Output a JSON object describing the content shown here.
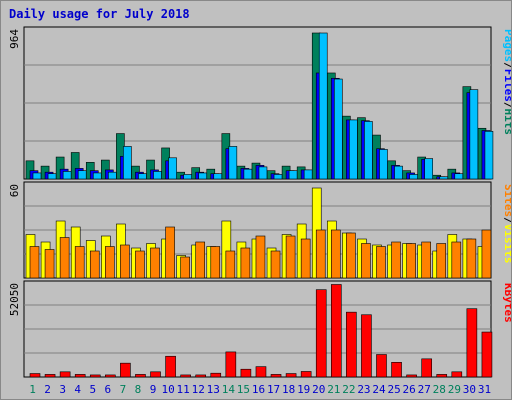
{
  "title": "Daily usage for July 2018",
  "colors": {
    "hits": "#00805c",
    "files": "#0000ff",
    "pages": "#00c0ff",
    "visits": "#ffff00",
    "sites": "#ff8000",
    "kbytes": "#ff0000",
    "panel_bg": "#c0c0c0",
    "grid": "#808080",
    "weekend_label": "#00805c",
    "weekday_label": "#0000cc"
  },
  "chart_data": [
    {
      "type": "bar",
      "panel": "top",
      "ylabel_parts": [
        "Pages",
        "Files",
        "Hits"
      ],
      "ymax_label": "964",
      "ylim": [
        0,
        964
      ],
      "categories": [
        "1",
        "2",
        "3",
        "4",
        "5",
        "6",
        "7",
        "8",
        "9",
        "10",
        "11",
        "12",
        "13",
        "14",
        "15",
        "16",
        "17",
        "18",
        "19",
        "20",
        "21",
        "22",
        "23",
        "24",
        "25",
        "26",
        "27",
        "28",
        "29",
        "30",
        "31"
      ],
      "series": [
        {
          "name": "Hits",
          "values": [
            120,
            85,
            145,
            175,
            110,
            125,
            300,
            85,
            125,
            205,
            45,
            75,
            65,
            300,
            85,
            105,
            55,
            85,
            80,
            964,
            700,
            415,
            405,
            290,
            120,
            55,
            145,
            25,
            65,
            610,
            335
          ]
        },
        {
          "name": "Files",
          "values": [
            55,
            45,
            65,
            70,
            55,
            60,
            150,
            45,
            60,
            120,
            25,
            45,
            35,
            200,
            70,
            90,
            35,
            55,
            60,
            700,
            665,
            390,
            385,
            200,
            90,
            40,
            130,
            15,
            40,
            570,
            320
          ]
        },
        {
          "name": "Pages",
          "values": [
            40,
            35,
            50,
            55,
            40,
            45,
            215,
            35,
            50,
            140,
            30,
            40,
            35,
            215,
            65,
            80,
            30,
            55,
            60,
            964,
            660,
            390,
            380,
            195,
            85,
            30,
            135,
            15,
            35,
            590,
            315
          ]
        }
      ]
    },
    {
      "type": "bar",
      "panel": "middle",
      "ylabel_parts": [
        "Sites",
        "Visits"
      ],
      "ymax_label": "60",
      "ylim": [
        0,
        60
      ],
      "categories": [
        "1",
        "2",
        "3",
        "4",
        "5",
        "6",
        "7",
        "8",
        "9",
        "10",
        "11",
        "12",
        "13",
        "14",
        "15",
        "16",
        "17",
        "18",
        "19",
        "20",
        "21",
        "22",
        "23",
        "24",
        "25",
        "26",
        "27",
        "28",
        "29",
        "30",
        "31"
      ],
      "series": [
        {
          "name": "Visits",
          "values": [
            29,
            24,
            38,
            34,
            25,
            28,
            36,
            20,
            23,
            26,
            15,
            22,
            21,
            38,
            24,
            26,
            20,
            29,
            36,
            60,
            38,
            30,
            26,
            22,
            22,
            23,
            22,
            18,
            29,
            26,
            21
          ]
        },
        {
          "name": "Sites",
          "values": [
            21,
            19,
            27,
            21,
            18,
            21,
            22,
            18,
            20,
            34,
            14,
            24,
            21,
            18,
            20,
            28,
            18,
            28,
            26,
            32,
            32,
            30,
            23,
            21,
            24,
            23,
            24,
            23,
            24,
            26,
            32
          ]
        }
      ]
    },
    {
      "type": "bar",
      "panel": "bottom",
      "ylabel_parts": [
        "KBytes"
      ],
      "ymax_label": "52050",
      "ylim": [
        0,
        52050
      ],
      "categories": [
        "1",
        "2",
        "3",
        "4",
        "5",
        "6",
        "7",
        "8",
        "9",
        "10",
        "11",
        "12",
        "13",
        "14",
        "15",
        "16",
        "17",
        "18",
        "19",
        "20",
        "21",
        "22",
        "23",
        "24",
        "25",
        "26",
        "27",
        "28",
        "29",
        "30",
        "31"
      ],
      "series": [
        {
          "name": "KBytes",
          "values": [
            2000,
            1500,
            3000,
            1500,
            1200,
            1200,
            8000,
            1500,
            3000,
            12000,
            1200,
            1200,
            2200,
            14500,
            4500,
            6000,
            1500,
            2000,
            3200,
            50500,
            53500,
            37500,
            36000,
            13000,
            8500,
            1200,
            10500,
            1500,
            3000,
            39500,
            26000
          ]
        }
      ]
    }
  ]
}
